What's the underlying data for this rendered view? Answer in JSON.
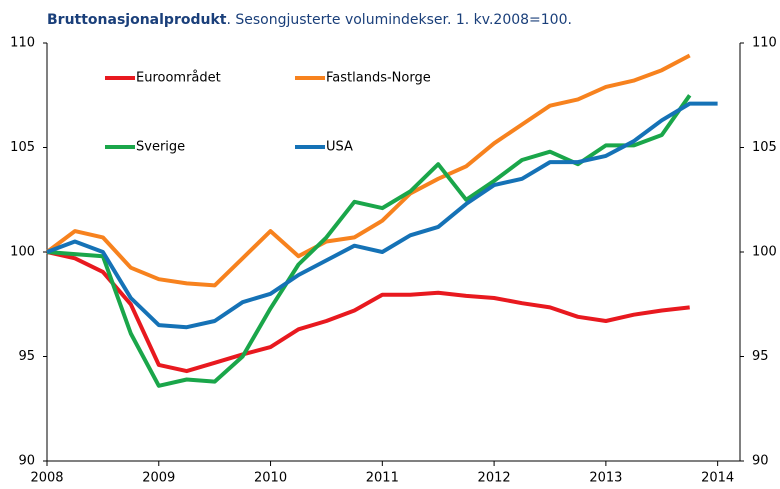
{
  "chart_data": {
    "type": "line",
    "title": "Bruttonasjonalprodukt",
    "subtitle": ". Sesongjusterte volumindekser. 1. kv.2008=100.",
    "x": [
      2008,
      2008.25,
      2008.5,
      2008.75,
      2009,
      2009.25,
      2009.5,
      2009.75,
      2010,
      2010.25,
      2010.5,
      2010.75,
      2011,
      2011.25,
      2011.5,
      2011.75,
      2012,
      2012.25,
      2012.5,
      2012.75,
      2013,
      2013.25,
      2013.5,
      2013.75,
      2014
    ],
    "series": [
      {
        "name": "Euroområdet",
        "color": "#e8191f",
        "values": [
          100,
          99.7,
          99.05,
          97.5,
          94.6,
          94.3,
          94.7,
          95.1,
          95.45,
          96.3,
          96.7,
          97.2,
          97.95,
          97.95,
          98.05,
          97.9,
          97.8,
          97.55,
          97.35,
          96.9,
          96.7,
          97.0,
          97.2,
          97.35,
          null
        ]
      },
      {
        "name": "Fastlands-Norge",
        "color": "#f7821e",
        "values": [
          100,
          101.0,
          100.7,
          99.25,
          98.7,
          98.5,
          98.4,
          99.7,
          101.0,
          99.8,
          100.5,
          100.7,
          101.5,
          102.8,
          103.5,
          104.1,
          105.2,
          106.1,
          107.0,
          107.3,
          107.9,
          108.2,
          108.7,
          109.4,
          null
        ]
      },
      {
        "name": "Sverige",
        "color": "#1aa64a",
        "values": [
          100,
          99.9,
          99.8,
          96.1,
          93.6,
          93.9,
          93.8,
          95.0,
          97.3,
          99.4,
          100.7,
          102.4,
          102.1,
          102.9,
          104.2,
          102.5,
          103.4,
          104.4,
          104.8,
          104.2,
          105.1,
          105.1,
          105.6,
          107.5,
          null
        ]
      },
      {
        "name": "USA",
        "color": "#1572b6",
        "values": [
          100,
          100.5,
          100.0,
          97.8,
          96.5,
          96.4,
          96.7,
          97.6,
          98.0,
          98.9,
          99.6,
          100.3,
          100.0,
          100.8,
          101.2,
          102.3,
          103.2,
          103.5,
          104.3,
          104.3,
          104.6,
          105.3,
          106.3,
          107.1,
          107.1
        ]
      }
    ],
    "xlim": [
      2008,
      2014.2
    ],
    "xticks": [
      2008,
      2009,
      2010,
      2011,
      2012,
      2013,
      2014
    ],
    "ylim": [
      90,
      110
    ],
    "yticks": [
      90,
      95,
      100,
      105,
      110
    ],
    "y2lim": [
      90,
      110
    ],
    "y2ticks": [
      90,
      95,
      100,
      105,
      110
    ],
    "grid": false
  }
}
